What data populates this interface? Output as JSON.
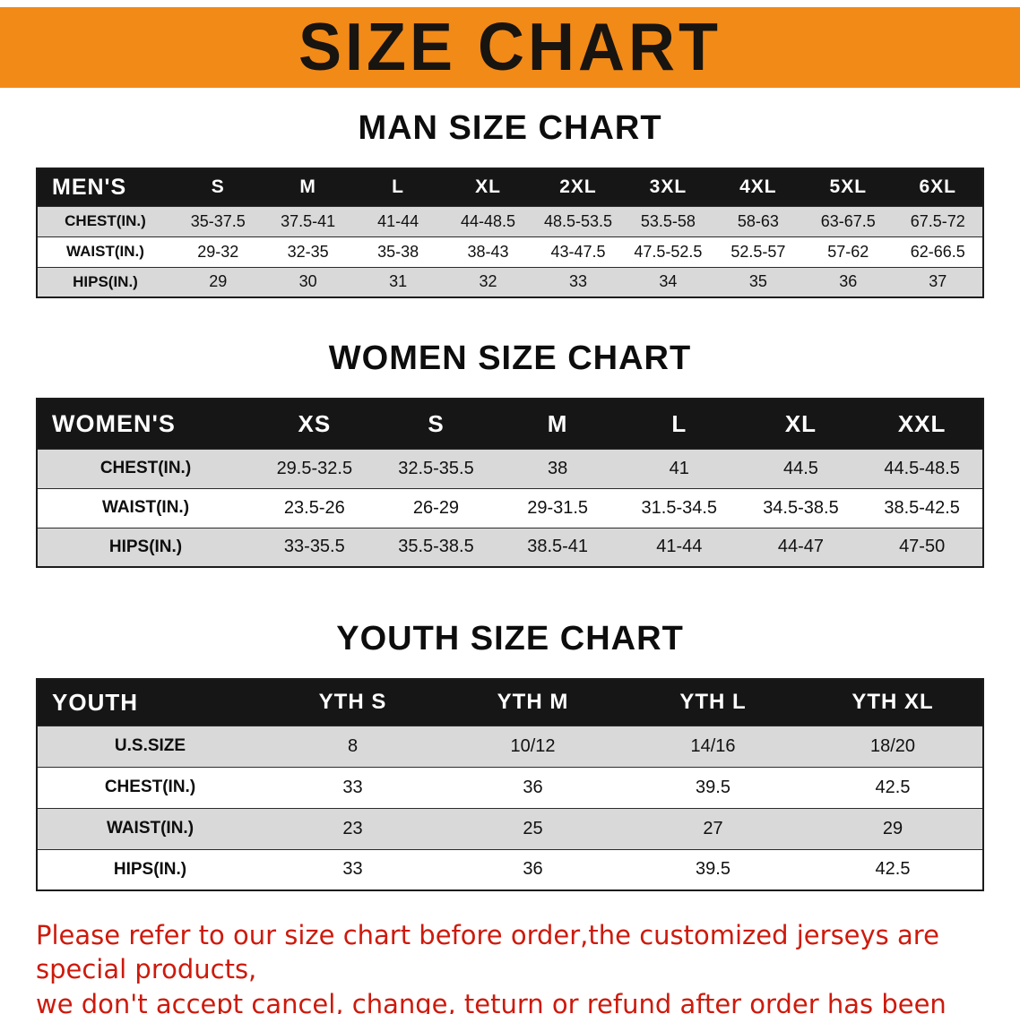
{
  "banner": {
    "title": "SIZE CHART"
  },
  "colors": {
    "banner_bg": "#f28a18",
    "table_header_bg": "#161616",
    "row_alt_gray": "#d9d9d9",
    "footer_text": "#cd1a0c"
  },
  "sections": [
    {
      "id": "men",
      "title": "MAN SIZE CHART",
      "header": [
        "MEN'S",
        "S",
        "M",
        "L",
        "XL",
        "2XL",
        "3XL",
        "4XL",
        "5XL",
        "6XL"
      ],
      "rows": [
        [
          "CHEST(IN.)",
          "35-37.5",
          "37.5-41",
          "41-44",
          "44-48.5",
          "48.5-53.5",
          "53.5-58",
          "58-63",
          "63-67.5",
          "67.5-72"
        ],
        [
          "WAIST(IN.)",
          "29-32",
          "32-35",
          "35-38",
          "38-43",
          "43-47.5",
          "47.5-52.5",
          "52.5-57",
          "57-62",
          "62-66.5"
        ],
        [
          "HIPS(IN.)",
          "29",
          "30",
          "31",
          "32",
          "33",
          "34",
          "35",
          "36",
          "37"
        ]
      ]
    },
    {
      "id": "women",
      "title": "WOMEN SIZE CHART",
      "header": [
        "WOMEN'S",
        "XS",
        "S",
        "M",
        "L",
        "XL",
        "XXL"
      ],
      "rows": [
        [
          "CHEST(IN.)",
          "29.5-32.5",
          "32.5-35.5",
          "38",
          "41",
          "44.5",
          "44.5-48.5"
        ],
        [
          "WAIST(IN.)",
          "23.5-26",
          "26-29",
          "29-31.5",
          "31.5-34.5",
          "34.5-38.5",
          "38.5-42.5"
        ],
        [
          "HIPS(IN.)",
          "33-35.5",
          "35.5-38.5",
          "38.5-41",
          "41-44",
          "44-47",
          "47-50"
        ]
      ]
    },
    {
      "id": "youth",
      "title": "YOUTH SIZE CHART",
      "header": [
        "YOUTH",
        "YTH S",
        "YTH M",
        "YTH L",
        "YTH XL"
      ],
      "rows": [
        [
          "U.S.SIZE",
          "8",
          "10/12",
          "14/16",
          "18/20"
        ],
        [
          "CHEST(IN.)",
          "33",
          "36",
          "39.5",
          "42.5"
        ],
        [
          "WAIST(IN.)",
          "23",
          "25",
          "27",
          "29"
        ],
        [
          "HIPS(IN.)",
          "33",
          "36",
          "39.5",
          "42.5"
        ]
      ]
    }
  ],
  "footer": {
    "lines": [
      "Please refer to our size chart before order,the customized jerseys are special products,",
      "we don't accept cancel, change, teturn or refund after order has been placed!"
    ]
  }
}
